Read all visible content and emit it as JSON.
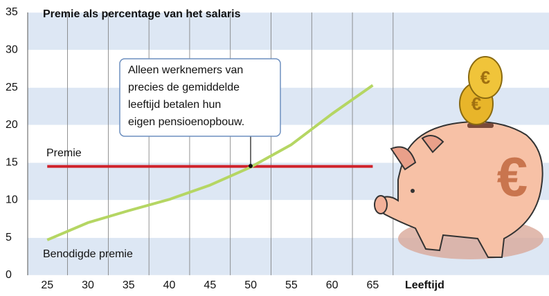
{
  "chart_data": {
    "type": "line",
    "title": "Premie als percentage van het salaris",
    "x_label": "Leeftijd",
    "x": [
      25,
      30,
      35,
      40,
      45,
      50,
      55,
      60,
      65
    ],
    "series": [
      {
        "name": "Premie",
        "color": "#d0222b",
        "values": [
          14.5,
          14.5,
          14.5,
          14.5,
          14.5,
          14.5,
          14.5,
          14.5,
          14.5
        ]
      },
      {
        "name": "Benodigde premie",
        "color": "#b5d663",
        "values": [
          4.7,
          7.0,
          8.6,
          10.1,
          12.0,
          14.4,
          17.4,
          21.5,
          25.3
        ]
      }
    ],
    "ylim": [
      0,
      35
    ],
    "yticks": [
      0,
      5,
      10,
      15,
      20,
      25,
      30,
      35
    ],
    "xlim": [
      22.6,
      67.6
    ],
    "xticks": [
      25,
      30,
      35,
      40,
      45,
      50,
      55,
      60,
      65
    ],
    "band_color": "#dde7f4",
    "annotation": [
      "Alleen werknemers van",
      "precies de gemiddelde",
      "leeftijd betalen hun",
      "eigen pensioenopbouw."
    ]
  },
  "piggy_bank": {
    "symbol": "€"
  }
}
